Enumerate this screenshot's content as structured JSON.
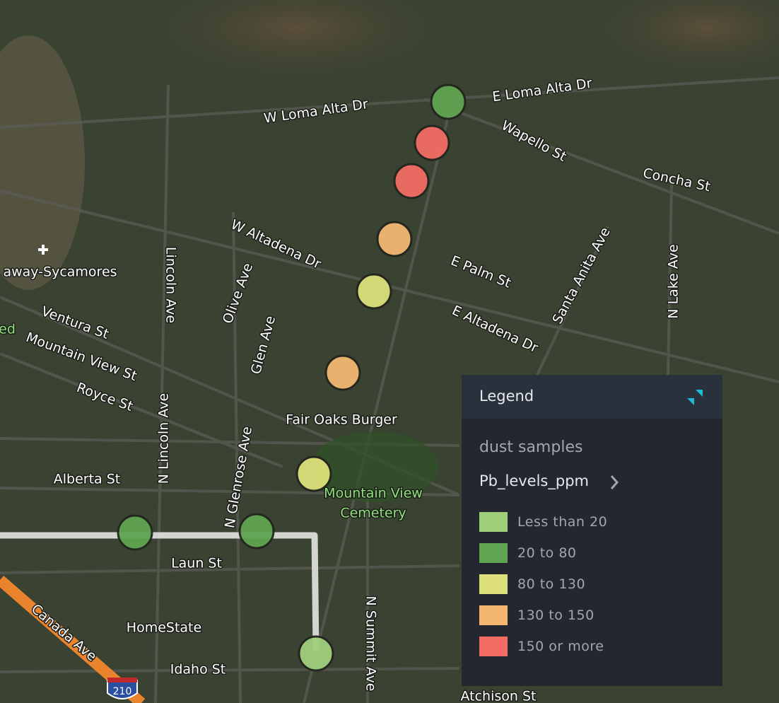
{
  "map": {
    "labels": [
      "E Loma Alta Dr",
      "W Loma Alta Dr",
      "Wapello St",
      "Concha St",
      "W Altadena Dr",
      "E Palm St",
      "Santa Anita Ave",
      "N Lake Ave",
      "Lincoln Ave",
      "Olive Ave",
      "Glen Ave",
      "E Altadena Dr",
      "away-Sycamores",
      "Ventura St",
      "Mountain View St",
      "Royce St",
      "N Lincoln Ave",
      "N Glenrose Ave",
      "Fair Oaks Burger",
      "Alberta St",
      "Laun St",
      "HomeState",
      "Canada Ave",
      "Idaho St",
      "N Summit Ave",
      "Atchison St"
    ],
    "green_labels": [
      "Mountain View",
      "Cemetery",
      "ed"
    ],
    "shield": "210",
    "markers": [
      {
        "color": "#5fa451"
      },
      {
        "color": "#f36d64"
      },
      {
        "color": "#f36d64"
      },
      {
        "color": "#f3b772"
      },
      {
        "color": "#dde07a"
      },
      {
        "color": "#f3b772"
      },
      {
        "color": "#dde07a"
      },
      {
        "color": "#5fa451"
      },
      {
        "color": "#5fa451"
      },
      {
        "color": "#a0cf7c"
      }
    ]
  },
  "legend": {
    "title": "Legend",
    "layer": "dust samples",
    "field": "Pb_levels_ppm",
    "items": [
      {
        "label": "Less than 20",
        "color": "#a0cf7c"
      },
      {
        "label": "20 to 80",
        "color": "#5fa451"
      },
      {
        "label": "80 to 130",
        "color": "#dde07a"
      },
      {
        "label": "130 to 150",
        "color": "#f3b772"
      },
      {
        "label": "150 or more",
        "color": "#f36d64"
      }
    ]
  }
}
